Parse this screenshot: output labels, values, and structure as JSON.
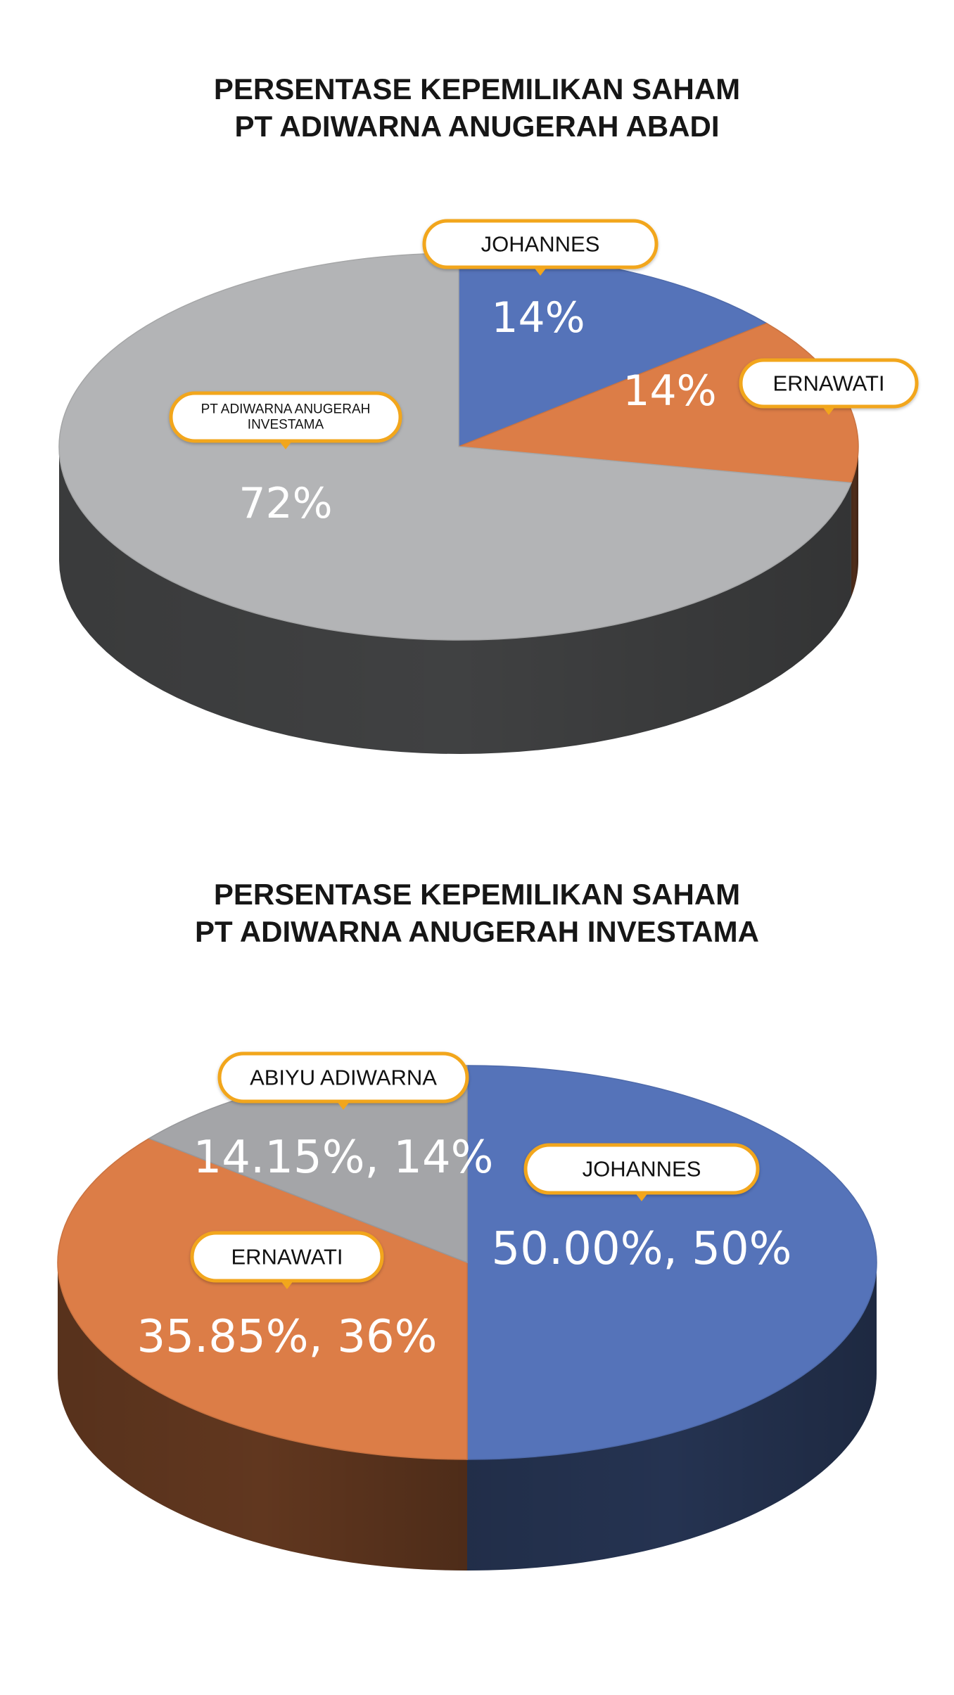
{
  "chart_data": [
    {
      "type": "pie",
      "title_lines": [
        "PERSENTASE KEPEMILIKAN SAHAM",
        "PT ADIWARNA ANUGERAH ABADI"
      ],
      "slices": [
        {
          "label": "JOHANNES",
          "value": 14,
          "value_label": "14%",
          "color": "#5573b9"
        },
        {
          "label": "ERNAWATI",
          "value": 14,
          "value_label": "14%",
          "color": "#dc7d47"
        },
        {
          "label": "PT ADIWARNA ANUGERAH INVESTAMA",
          "value": 72,
          "value_label": "72%",
          "color": "#b3b4b6"
        }
      ]
    },
    {
      "type": "pie",
      "title_lines": [
        "PERSENTASE KEPEMILIKAN SAHAM",
        "PT ADIWARNA ANUGERAH INVESTAMA"
      ],
      "slices": [
        {
          "label": "JOHANNES",
          "value": 50.0,
          "value_label": "50.00%, 50%",
          "color": "#5573b9"
        },
        {
          "label": "ERNAWATI",
          "value": 35.85,
          "value_label": "35.85%, 36%",
          "color": "#dc7d47"
        },
        {
          "label": "ABIYU ADIWARNA",
          "value": 14.15,
          "value_label": "14.15%, 14%",
          "color": "#a4a5a8"
        }
      ]
    }
  ],
  "callout_border_color": "#f2a61c"
}
